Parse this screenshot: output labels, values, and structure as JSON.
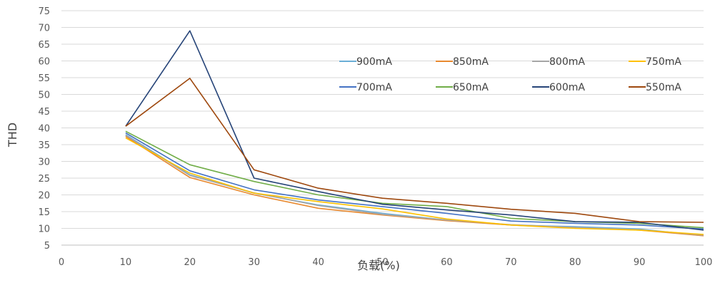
{
  "chart_data": {
    "type": "line",
    "xlabel": "负载(%)",
    "ylabel": "THD",
    "xlim": [
      0,
      100
    ],
    "ylim": [
      5,
      75
    ],
    "x_ticks": [
      0,
      10,
      20,
      30,
      40,
      50,
      60,
      70,
      80,
      90,
      100
    ],
    "y_ticks": [
      5,
      10,
      15,
      20,
      25,
      30,
      35,
      40,
      45,
      50,
      55,
      60,
      65,
      70,
      75
    ],
    "grid": "horizontal",
    "legend_position": "top-right",
    "x": [
      10,
      20,
      30,
      40,
      50,
      60,
      70,
      80,
      90,
      100
    ],
    "series": [
      {
        "name": "900mA",
        "color": "#6aaed6",
        "values": [
          38.0,
          26.0,
          20.5,
          17.0,
          14.5,
          12.5,
          11.0,
          10.5,
          9.8,
          7.8
        ]
      },
      {
        "name": "850mA",
        "color": "#e8892f",
        "values": [
          37.5,
          25.2,
          20.0,
          16.0,
          14.0,
          12.3,
          11.0,
          10.2,
          9.5,
          7.8
        ]
      },
      {
        "name": "800mA",
        "color": "#a6a6a6",
        "values": [
          37.8,
          25.8,
          20.6,
          16.8,
          14.2,
          12.5,
          11.1,
          10.3,
          9.6,
          8.0
        ]
      },
      {
        "name": "750mA",
        "color": "#ffc000",
        "values": [
          37.0,
          26.5,
          20.5,
          18.0,
          15.8,
          12.8,
          11.0,
          10.0,
          9.5,
          8.2
        ]
      },
      {
        "name": "700mA",
        "color": "#4472c4",
        "values": [
          38.5,
          27.2,
          21.5,
          18.5,
          16.5,
          14.5,
          12.2,
          11.5,
          11.0,
          9.8
        ]
      },
      {
        "name": "650mA",
        "color": "#70ad47",
        "values": [
          39.0,
          29.0,
          24.0,
          20.0,
          17.5,
          16.5,
          13.0,
          12.0,
          11.5,
          10.2
        ]
      },
      {
        "name": "600mA",
        "color": "#264478",
        "values": [
          40.5,
          69.0,
          25.0,
          21.0,
          17.2,
          15.5,
          14.0,
          12.0,
          11.8,
          9.5
        ]
      },
      {
        "name": "550mA",
        "color": "#9e480e",
        "values": [
          40.5,
          54.8,
          27.5,
          22.0,
          19.0,
          17.5,
          15.7,
          14.5,
          12.0,
          11.8
        ]
      }
    ]
  }
}
